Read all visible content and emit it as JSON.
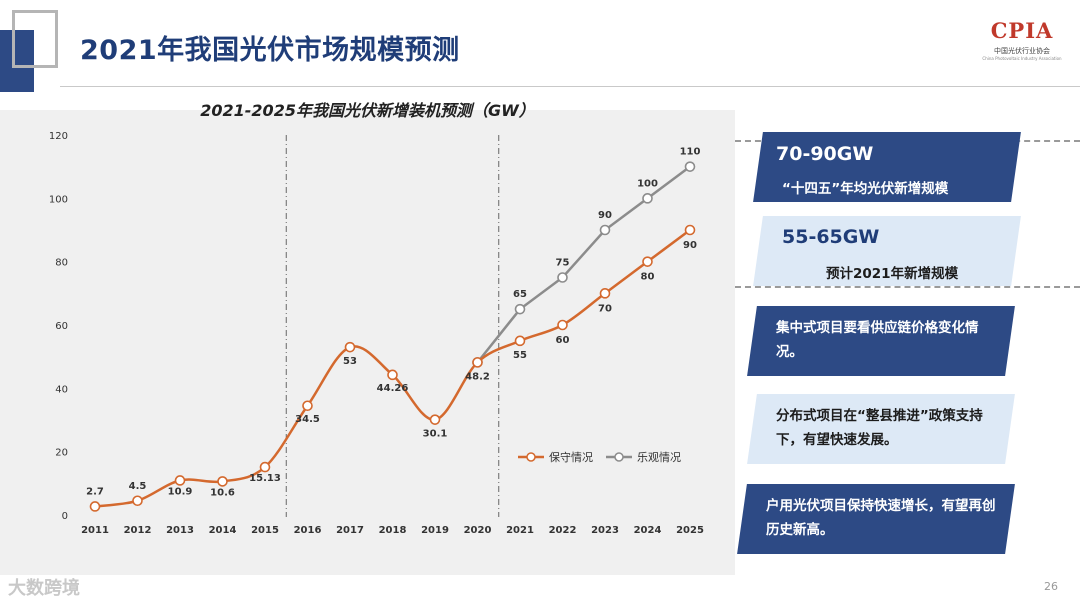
{
  "page_title": "2021年我国光伏市场规模预测",
  "logo": {
    "text": "CPIA",
    "subtitle": "中国光伏行业协会",
    "subtitle_en": "China Photovoltaic Industry Association"
  },
  "chart_data": {
    "type": "line",
    "title": "2021-2025年我国光伏新增装机预测（GW）",
    "x": [
      "2011",
      "2012",
      "2013",
      "2014",
      "2015",
      "2016",
      "2017",
      "2018",
      "2019",
      "2020",
      "2021",
      "2022",
      "2023",
      "2024",
      "2025"
    ],
    "ylim": [
      0,
      120
    ],
    "yticks": [
      0,
      20,
      40,
      60,
      80,
      100,
      120
    ],
    "grid": false,
    "legend_position": "bottom-right",
    "divider_after": [
      "2015",
      "2020"
    ],
    "series": [
      {
        "name": "保守情况",
        "color": "#d4692e",
        "values": [
          2.7,
          4.5,
          10.9,
          10.6,
          15.13,
          34.5,
          53,
          44.26,
          30.1,
          48.2,
          55,
          60,
          70,
          80,
          90
        ],
        "labels": [
          "2.7",
          "4.5",
          "10.9",
          "10.6",
          "15.13",
          "34.5",
          "53",
          "44.26",
          "30.1",
          "48.2",
          "55",
          "60",
          "70",
          "80",
          "90"
        ]
      },
      {
        "name": "乐观情况",
        "color": "#8c8c8c",
        "values": [
          null,
          null,
          null,
          null,
          null,
          null,
          null,
          null,
          null,
          48.2,
          65,
          75,
          90,
          100,
          110
        ],
        "labels": [
          null,
          null,
          null,
          null,
          null,
          null,
          null,
          null,
          null,
          null,
          "65",
          "75",
          "90",
          "100",
          "110"
        ]
      }
    ]
  },
  "panels": [
    {
      "big": "70-90GW",
      "text": "“十四五”年均光伏新增规模"
    },
    {
      "big": "55-65GW",
      "text": "预计2021年新增规模"
    },
    {
      "text": "集中式项目要看供应链价格变化情况。"
    },
    {
      "text": "分布式项目在“整县推进”政策支持下，有望快速发展。"
    },
    {
      "text": "户用光伏项目保持快速增长，有望再创历史新高。"
    }
  ],
  "watermark": "大数跨境",
  "page_number": "26",
  "colors": {
    "navy": "#2d4a85",
    "light_blue": "#dde9f6",
    "orange": "#d4692e",
    "gray": "#8c8c8c"
  }
}
